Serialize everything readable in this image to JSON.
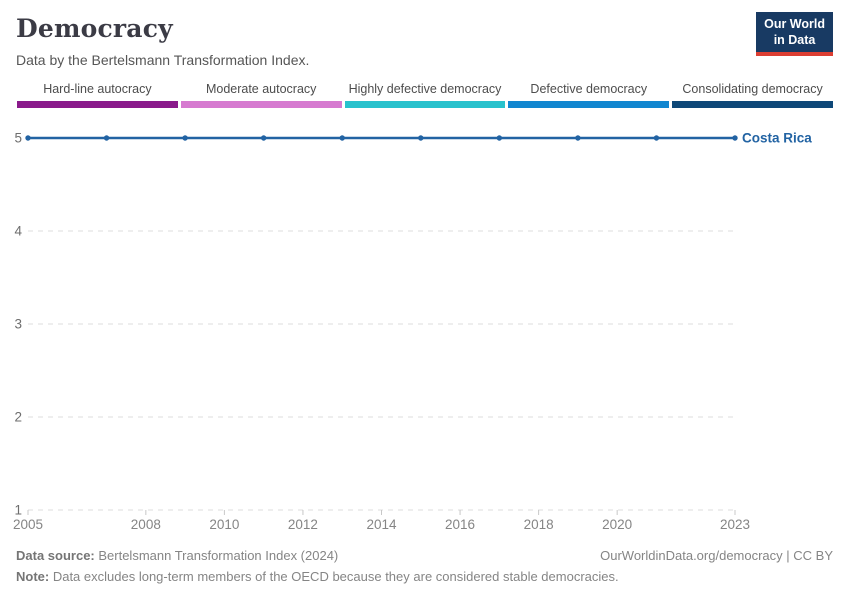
{
  "header": {
    "title": "Democracy",
    "subtitle": "Data by the Bertelsmann Transformation Index.",
    "logo": {
      "line1": "Our World",
      "line2": "in Data",
      "bg": "#183a63",
      "accent": "#dc3e32"
    }
  },
  "legend": {
    "categories": [
      {
        "label": "Hard-line autocracy",
        "color": "#8a1a8b"
      },
      {
        "label": "Moderate autocracy",
        "color": "#d67ad0"
      },
      {
        "label": "Highly defective democracy",
        "color": "#29c2cd"
      },
      {
        "label": "Defective democracy",
        "color": "#1186d0"
      },
      {
        "label": "Consolidating democracy",
        "color": "#0e4878"
      }
    ]
  },
  "chart_data": {
    "type": "line",
    "title": "Democracy",
    "subtitle": "Data by the Bertelsmann Transformation Index.",
    "series": [
      {
        "name": "Costa Rica",
        "color": "#2263a3",
        "x": [
          2005,
          2007,
          2009,
          2011,
          2013,
          2015,
          2017,
          2019,
          2021,
          2023
        ],
        "values": [
          5,
          5,
          5,
          5,
          5,
          5,
          5,
          5,
          5,
          5
        ]
      }
    ],
    "x_ticks": [
      2005,
      2008,
      2010,
      2012,
      2014,
      2016,
      2018,
      2020,
      2023
    ],
    "y_ticks": [
      1,
      2,
      3,
      4,
      5
    ],
    "xlim": [
      2005,
      2023
    ],
    "ylim": [
      1,
      5
    ],
    "grid": "horizontal-dashed",
    "legend_position": "end-of-line-label"
  },
  "footer": {
    "source_label": "Data source:",
    "source_text": " Bertelsmann Transformation Index (2024)",
    "rights": "OurWorldinData.org/democracy | CC BY",
    "note_label": "Note:",
    "note_text": " Data excludes long-term members of the OECD because they are considered stable democracies."
  }
}
